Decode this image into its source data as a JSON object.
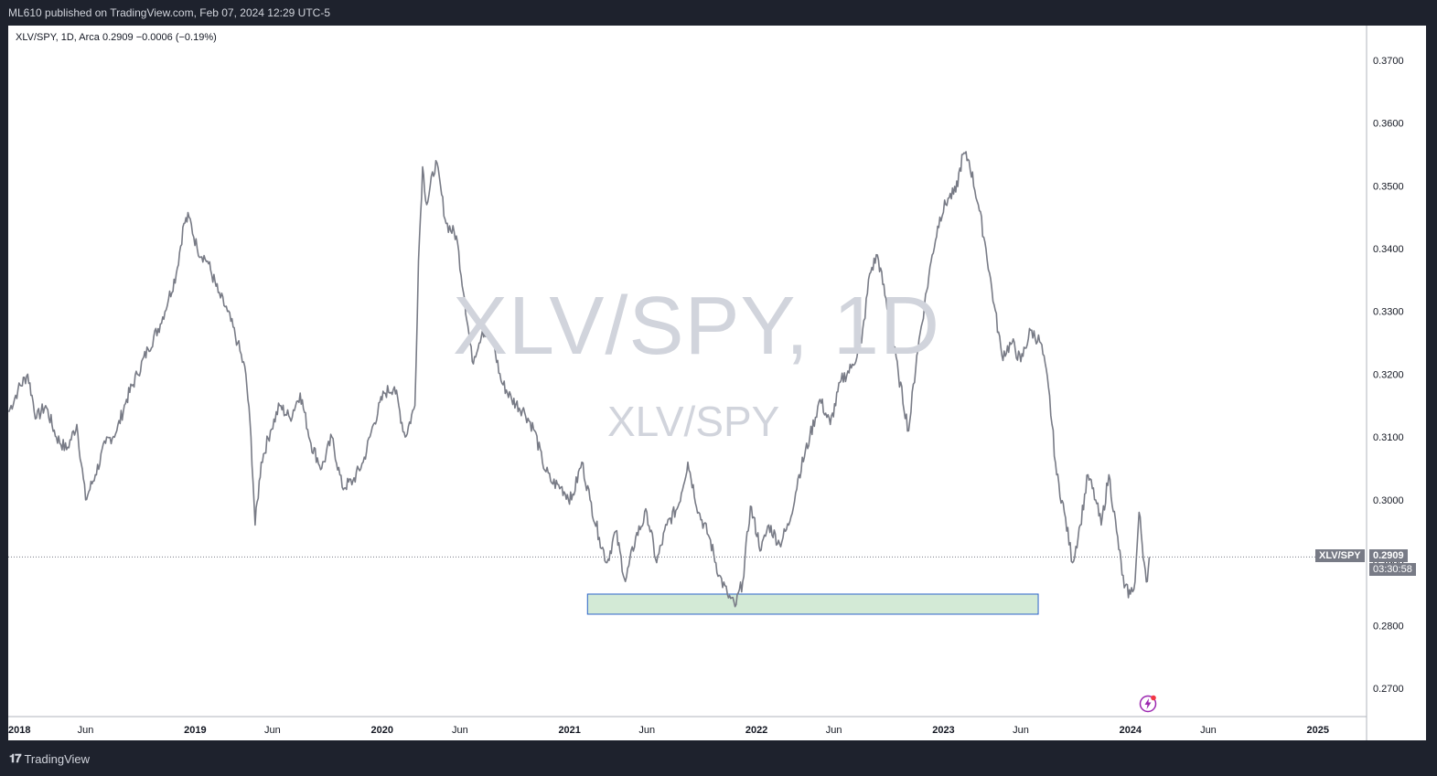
{
  "header": {
    "published_text": "ML610 published on TradingView.com, Feb 07, 2024 12:29 UTC-5"
  },
  "legend": {
    "symbol": "XLV/SPY, 1D, Arca",
    "last": "0.2909",
    "change": "−0.0006 (−0.19%)"
  },
  "watermark": {
    "main": "XLV/SPY, 1D",
    "sub": "XLV/SPY"
  },
  "price_label": {
    "symbol": "XLV/SPY",
    "value": "0.2909",
    "countdown": "03:30:58"
  },
  "footer": {
    "brand": "TradingView"
  },
  "colors": {
    "line": "#787b86",
    "zone_fill": "#d3ead6",
    "zone_border": "#2a62c9",
    "background": "#ffffff",
    "frame": "#1e222d"
  },
  "chart_data": {
    "type": "line",
    "series": [
      {
        "values": [
          [
            "2018-01-02",
            0.314
          ],
          [
            "2018-01-20",
            0.3175
          ],
          [
            "2018-02-08",
            0.32
          ],
          [
            "2018-02-25",
            0.313
          ],
          [
            "2018-03-15",
            0.315
          ],
          [
            "2018-04-05",
            0.31
          ],
          [
            "2018-04-25",
            0.308
          ],
          [
            "2018-05-15",
            0.312
          ],
          [
            "2018-06-01",
            0.3
          ],
          [
            "2018-06-20",
            0.304
          ],
          [
            "2018-07-10",
            0.309
          ],
          [
            "2018-08-01",
            0.311
          ],
          [
            "2018-08-20",
            0.316
          ],
          [
            "2018-09-10",
            0.32
          ],
          [
            "2018-10-01",
            0.324
          ],
          [
            "2018-10-25",
            0.328
          ],
          [
            "2018-11-10",
            0.332
          ],
          [
            "2018-11-25",
            0.336
          ],
          [
            "2018-12-10",
            0.344
          ],
          [
            "2018-12-20",
            0.345
          ],
          [
            "2019-01-05",
            0.34
          ],
          [
            "2019-01-25",
            0.338
          ],
          [
            "2019-02-15",
            0.333
          ],
          [
            "2019-03-05",
            0.33
          ],
          [
            "2019-03-25",
            0.325
          ],
          [
            "2019-04-10",
            0.32
          ],
          [
            "2019-04-20",
            0.31
          ],
          [
            "2019-04-28",
            0.296
          ],
          [
            "2019-05-10",
            0.306
          ],
          [
            "2019-05-28",
            0.311
          ],
          [
            "2019-06-15",
            0.315
          ],
          [
            "2019-07-05",
            0.313
          ],
          [
            "2019-07-25",
            0.317
          ],
          [
            "2019-08-15",
            0.309
          ],
          [
            "2019-09-05",
            0.305
          ],
          [
            "2019-09-25",
            0.31
          ],
          [
            "2019-10-15",
            0.302
          ],
          [
            "2019-11-05",
            0.303
          ],
          [
            "2019-11-25",
            0.306
          ],
          [
            "2019-12-15",
            0.312
          ],
          [
            "2020-01-05",
            0.317
          ],
          [
            "2020-01-25",
            0.318
          ],
          [
            "2020-02-15",
            0.31
          ],
          [
            "2020-03-05",
            0.315
          ],
          [
            "2020-03-12",
            0.338
          ],
          [
            "2020-03-20",
            0.353
          ],
          [
            "2020-03-28",
            0.347
          ],
          [
            "2020-04-15",
            0.354
          ],
          [
            "2020-05-05",
            0.344
          ],
          [
            "2020-05-25",
            0.342
          ],
          [
            "2020-06-10",
            0.332
          ],
          [
            "2020-06-25",
            0.322
          ],
          [
            "2020-07-15",
            0.327
          ],
          [
            "2020-08-05",
            0.325
          ],
          [
            "2020-08-20",
            0.319
          ],
          [
            "2020-09-10",
            0.316
          ],
          [
            "2020-10-05",
            0.314
          ],
          [
            "2020-10-25",
            0.311
          ],
          [
            "2020-11-09",
            0.306
          ],
          [
            "2020-11-25",
            0.303
          ],
          [
            "2020-12-15",
            0.302
          ],
          [
            "2021-01-05",
            0.3
          ],
          [
            "2021-01-25",
            0.306
          ],
          [
            "2021-02-10",
            0.3
          ],
          [
            "2021-02-28",
            0.294
          ],
          [
            "2021-03-15",
            0.29
          ],
          [
            "2021-04-01",
            0.295
          ],
          [
            "2021-04-20",
            0.287
          ],
          [
            "2021-05-10",
            0.294
          ],
          [
            "2021-06-01",
            0.298
          ],
          [
            "2021-06-20",
            0.29
          ],
          [
            "2021-07-10",
            0.296
          ],
          [
            "2021-08-01",
            0.299
          ],
          [
            "2021-08-20",
            0.306
          ],
          [
            "2021-09-10",
            0.298
          ],
          [
            "2021-10-01",
            0.294
          ],
          [
            "2021-10-20",
            0.288
          ],
          [
            "2021-11-05",
            0.285
          ],
          [
            "2021-11-20",
            0.283
          ],
          [
            "2021-12-05",
            0.287
          ],
          [
            "2021-12-20",
            0.299
          ],
          [
            "2022-01-10",
            0.292
          ],
          [
            "2022-01-25",
            0.296
          ],
          [
            "2022-02-15",
            0.293
          ],
          [
            "2022-03-05",
            0.296
          ],
          [
            "2022-03-25",
            0.304
          ],
          [
            "2022-04-15",
            0.31
          ],
          [
            "2022-05-05",
            0.316
          ],
          [
            "2022-05-25",
            0.312
          ],
          [
            "2022-06-15",
            0.319
          ],
          [
            "2022-07-05",
            0.321
          ],
          [
            "2022-07-25",
            0.325
          ],
          [
            "2022-08-10",
            0.336
          ],
          [
            "2022-08-25",
            0.339
          ],
          [
            "2022-09-15",
            0.33
          ],
          [
            "2022-10-05",
            0.32
          ],
          [
            "2022-10-25",
            0.311
          ],
          [
            "2022-11-10",
            0.323
          ],
          [
            "2022-11-25",
            0.331
          ],
          [
            "2022-12-10",
            0.339
          ],
          [
            "2022-12-25",
            0.345
          ],
          [
            "2023-01-10",
            0.348
          ],
          [
            "2023-01-25",
            0.349
          ],
          [
            "2023-02-08",
            0.355
          ],
          [
            "2023-02-20",
            0.354
          ],
          [
            "2023-03-10",
            0.347
          ],
          [
            "2023-03-25",
            0.34
          ],
          [
            "2023-04-10",
            0.331
          ],
          [
            "2023-04-25",
            0.323
          ],
          [
            "2023-05-15",
            0.325
          ],
          [
            "2023-06-01",
            0.322
          ],
          [
            "2023-06-20",
            0.327
          ],
          [
            "2023-07-10",
            0.325
          ],
          [
            "2023-07-25",
            0.318
          ],
          [
            "2023-08-10",
            0.304
          ],
          [
            "2023-08-25",
            0.298
          ],
          [
            "2023-09-10",
            0.29
          ],
          [
            "2023-09-25",
            0.296
          ],
          [
            "2023-10-10",
            0.304
          ],
          [
            "2023-10-25",
            0.3
          ],
          [
            "2023-11-05",
            0.296
          ],
          [
            "2023-11-20",
            0.304
          ],
          [
            "2023-12-05",
            0.295
          ],
          [
            "2023-12-20",
            0.286
          ],
          [
            "2024-01-01",
            0.285
          ],
          [
            "2024-01-10",
            0.287
          ],
          [
            "2024-01-18",
            0.298
          ],
          [
            "2024-01-28",
            0.29
          ],
          [
            "2024-02-03",
            0.287
          ],
          [
            "2024-02-07",
            0.2909
          ]
        ]
      }
    ],
    "x_ticks": [
      "2018",
      "Jun",
      "2019",
      "Jun",
      "2020",
      "Jun",
      "2021",
      "Jun",
      "2022",
      "Jun",
      "2023",
      "Jun",
      "2024",
      "Jun",
      "2025"
    ],
    "y_ticks": [
      "0.3700",
      "0.3600",
      "0.3500",
      "0.3400",
      "0.3300",
      "0.3200",
      "0.3100",
      "0.3000",
      "0.2900",
      "0.2800",
      "0.2700"
    ],
    "ylim": [
      0.2655,
      0.3755
    ],
    "xlim": [
      "2018-01-01",
      "2025-04-15"
    ],
    "support_zone": {
      "x_start": "2021-02-05",
      "x_end": "2023-07-05",
      "y_low": 0.2818,
      "y_high": 0.285
    },
    "last_value": 0.2909
  }
}
